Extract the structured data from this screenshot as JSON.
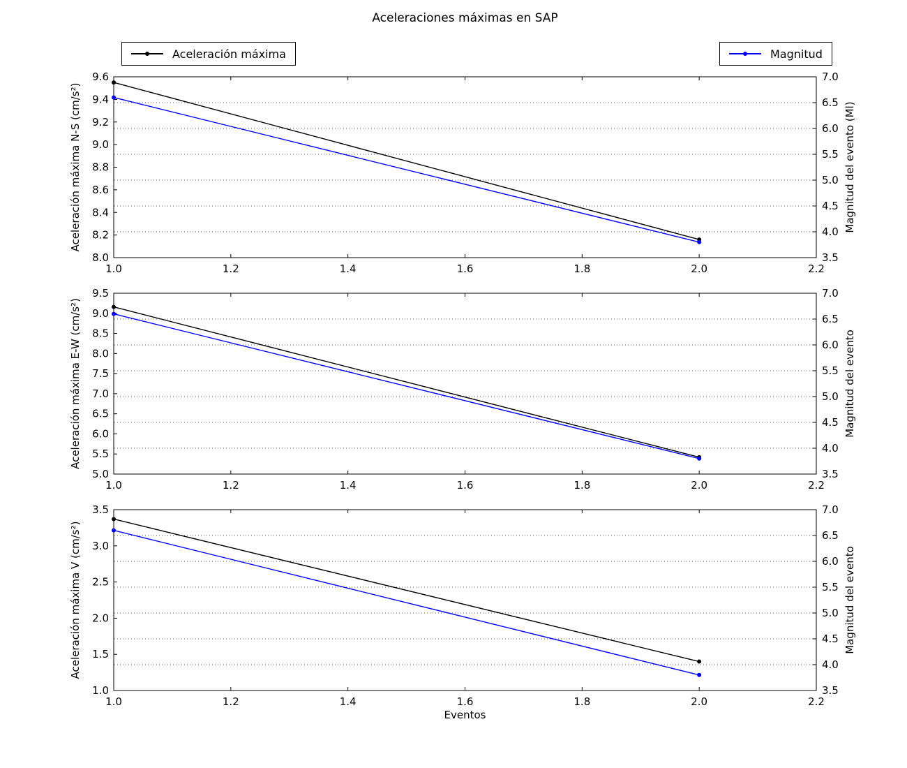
{
  "title": "Aceleraciones máximas en SAP",
  "xlabel": "Eventos",
  "legend_left": {
    "label": "Aceleración máxima",
    "color": "#000000"
  },
  "legend_right": {
    "label": "Magnitud",
    "color": "#0000ff"
  },
  "colors": {
    "acceleration_line": "#000000",
    "magnitude_line": "#0000ff",
    "grid": "#555555",
    "axis": "#000000"
  },
  "chart_data": [
    {
      "id": "ns",
      "type": "line",
      "x": [
        1.0,
        2.0
      ],
      "xlim": [
        1.0,
        2.2
      ],
      "xticks": [
        1.0,
        1.2,
        1.4,
        1.6,
        1.8,
        2.0,
        2.2
      ],
      "grid": "dotted horizontal lines at right-axis ticks",
      "left_axis": {
        "label": "Aceleración máxima N-S (cm/s²)",
        "min": 8.0,
        "max": 9.6,
        "ticks": [
          8.0,
          8.2,
          8.4,
          8.6,
          8.8,
          9.0,
          9.2,
          9.4,
          9.6
        ]
      },
      "right_axis": {
        "label": "Magnitud del evento (Ml)",
        "min": 3.5,
        "max": 7.0,
        "ticks": [
          3.5,
          4.0,
          4.5,
          5.0,
          5.5,
          6.0,
          6.5,
          7.0
        ]
      },
      "series": [
        {
          "name": "Aceleración máxima",
          "axis": "left",
          "color": "#000000",
          "values": [
            9.55,
            8.16
          ]
        },
        {
          "name": "Magnitud",
          "axis": "right",
          "color": "#0000ff",
          "values": [
            6.6,
            3.8
          ]
        }
      ]
    },
    {
      "id": "ew",
      "type": "line",
      "x": [
        1.0,
        2.0
      ],
      "xlim": [
        1.0,
        2.2
      ],
      "xticks": [
        1.0,
        1.2,
        1.4,
        1.6,
        1.8,
        2.0,
        2.2
      ],
      "grid": "dotted horizontal lines at right-axis ticks",
      "left_axis": {
        "label": "Aceleración máxima E-W (cm/s²)",
        "min": 5.0,
        "max": 9.5,
        "ticks": [
          5.0,
          5.5,
          6.0,
          6.5,
          7.0,
          7.5,
          8.0,
          8.5,
          9.0,
          9.5
        ]
      },
      "right_axis": {
        "label": "Magnitud del evento",
        "min": 3.5,
        "max": 7.0,
        "ticks": [
          3.5,
          4.0,
          4.5,
          5.0,
          5.5,
          6.0,
          6.5,
          7.0
        ]
      },
      "series": [
        {
          "name": "Aceleración máxima",
          "axis": "left",
          "color": "#000000",
          "values": [
            9.16,
            5.42
          ]
        },
        {
          "name": "Magnitud",
          "axis": "right",
          "color": "#0000ff",
          "values": [
            6.6,
            3.8
          ]
        }
      ]
    },
    {
      "id": "v",
      "type": "line",
      "x": [
        1.0,
        2.0
      ],
      "xlim": [
        1.0,
        2.2
      ],
      "xticks": [
        1.0,
        1.2,
        1.4,
        1.6,
        1.8,
        2.0,
        2.2
      ],
      "grid": "dotted horizontal lines at right-axis ticks",
      "left_axis": {
        "label": "Aceleración máxima V (cm/s²)",
        "min": 1.0,
        "max": 3.5,
        "ticks": [
          1.0,
          1.5,
          2.0,
          2.5,
          3.0,
          3.5
        ]
      },
      "right_axis": {
        "label": "Magnitud del evento",
        "min": 3.5,
        "max": 7.0,
        "ticks": [
          3.5,
          4.0,
          4.5,
          5.0,
          5.5,
          6.0,
          6.5,
          7.0
        ]
      },
      "series": [
        {
          "name": "Aceleración máxima",
          "axis": "left",
          "color": "#000000",
          "values": [
            3.37,
            1.4
          ]
        },
        {
          "name": "Magnitud",
          "axis": "right",
          "color": "#0000ff",
          "values": [
            6.6,
            3.8
          ]
        }
      ]
    }
  ]
}
